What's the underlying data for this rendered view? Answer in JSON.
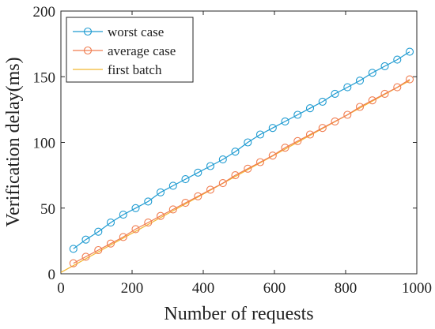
{
  "chart_data": {
    "type": "line",
    "title": "",
    "xlabel": "Number of requests",
    "ylabel": "Verification delay(ms)",
    "xlim": [
      0,
      1000
    ],
    "ylim": [
      0,
      200
    ],
    "xticks": [
      0,
      200,
      400,
      600,
      800,
      1000
    ],
    "yticks": [
      0,
      50,
      100,
      150,
      200
    ],
    "grid": false,
    "legend_position": "top-left",
    "series": [
      {
        "name": "worst case",
        "color": "#1f9bd1",
        "marker": "circle",
        "x": [
          35,
          70,
          105,
          140,
          175,
          210,
          245,
          280,
          315,
          350,
          385,
          420,
          455,
          490,
          525,
          560,
          595,
          630,
          665,
          700,
          735,
          770,
          805,
          840,
          875,
          910,
          945,
          980
        ],
        "y": [
          19,
          26,
          32,
          39,
          45,
          50,
          55,
          62,
          67,
          72,
          77,
          82,
          87,
          93,
          100,
          106,
          111,
          116,
          121,
          126,
          131,
          137,
          142,
          147,
          153,
          158,
          163,
          169
        ]
      },
      {
        "name": "average case",
        "color": "#f07c4f",
        "marker": "circle",
        "x": [
          35,
          70,
          105,
          140,
          175,
          210,
          245,
          280,
          315,
          350,
          385,
          420,
          455,
          490,
          525,
          560,
          595,
          630,
          665,
          700,
          735,
          770,
          805,
          840,
          875,
          910,
          945,
          980
        ],
        "y": [
          8,
          13,
          18,
          23,
          28,
          34,
          39,
          44,
          49,
          54,
          59,
          64,
          69,
          75,
          80,
          85,
          90,
          96,
          101,
          106,
          111,
          116,
          121,
          127,
          132,
          137,
          142,
          148
        ]
      },
      {
        "name": "first batch",
        "color": "#f2b632",
        "marker": "none",
        "x": [
          0,
          980
        ],
        "y": [
          1,
          147
        ]
      }
    ]
  }
}
